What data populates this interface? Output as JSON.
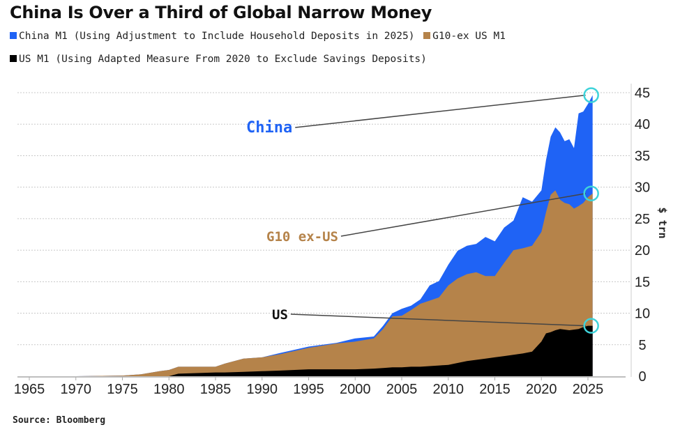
{
  "chart_data": {
    "type": "area",
    "stacked": true,
    "title": "China Is Over a Third of Global Narrow Money",
    "ylabel": "$ trn",
    "xlabel": "",
    "xlim": [
      1962,
      2029
    ],
    "ylim": [
      0,
      45
    ],
    "y_axis_position": "right",
    "yticks": [
      "0",
      "5",
      "10",
      "15",
      "20",
      "25",
      "30",
      "35",
      "40",
      "45"
    ],
    "xticks": [
      "1965",
      "1970",
      "1975",
      "1980",
      "1985",
      "1990",
      "1995",
      "2000",
      "2005",
      "2010",
      "2015",
      "2020",
      "2025"
    ],
    "grid": "horizontal dotted",
    "legend_position": "top",
    "source": "Source: Bloomberg",
    "x": [
      1965,
      1970,
      1975,
      1977,
      1979,
      1980,
      1981,
      1983,
      1985,
      1986,
      1988,
      1990,
      1992,
      1995,
      1998,
      2000,
      2002,
      2003,
      2004,
      2005,
      2006,
      2007,
      2008,
      2009,
      2010,
      2011,
      2012,
      2013,
      2014,
      2015,
      2016,
      2017,
      2018,
      2019,
      2020,
      2020.5,
      2021,
      2021.5,
      2022,
      2022.5,
      2023,
      2023.5,
      2024,
      2024.5,
      2025,
      2025.5
    ],
    "series": [
      {
        "name": "US M1 (Using Adapted Measure From 2020 to Exclude Savings Deposits)",
        "label": "US",
        "color": "#000000",
        "values": [
          0,
          0,
          0,
          0,
          0,
          0,
          0.4,
          0.5,
          0.6,
          0.6,
          0.7,
          0.8,
          0.9,
          1.1,
          1.1,
          1.1,
          1.2,
          1.3,
          1.4,
          1.4,
          1.5,
          1.5,
          1.6,
          1.7,
          1.8,
          2.1,
          2.4,
          2.6,
          2.8,
          3.0,
          3.2,
          3.4,
          3.6,
          3.9,
          5.5,
          6.8,
          7.0,
          7.3,
          7.5,
          7.4,
          7.3,
          7.4,
          7.5,
          7.8,
          8.0,
          8.0
        ]
      },
      {
        "name": "G10-ex US M1",
        "label": "G10 ex-US",
        "color": "#B5834A",
        "values": [
          0,
          0,
          0.1,
          0.3,
          0.8,
          1.0,
          1.1,
          1.0,
          0.9,
          1.4,
          2.1,
          2.2,
          2.6,
          3.4,
          4.1,
          4.4,
          4.8,
          6.2,
          8.1,
          8.2,
          9.0,
          10.0,
          10.4,
          10.8,
          12.6,
          13.4,
          13.8,
          13.9,
          13.1,
          12.9,
          14.8,
          16.6,
          16.7,
          16.8,
          17.4,
          19.2,
          21.8,
          22.2,
          20.5,
          20.1,
          20.0,
          19.2,
          19.5,
          19.7,
          20.4,
          21.0
        ]
      },
      {
        "name": "China M1 (Using Adjustment to Include Household Deposits in 2025)",
        "label": "China",
        "color": "#1F63F5",
        "values": [
          0,
          0,
          0,
          0,
          0,
          0,
          0,
          0,
          0,
          0,
          0,
          0,
          0.2,
          0.2,
          0.1,
          0.5,
          0.3,
          0.5,
          0.5,
          1.1,
          0.7,
          0.7,
          2.4,
          2.6,
          3.3,
          4.4,
          4.5,
          4.5,
          6.2,
          5.5,
          5.6,
          4.7,
          8.1,
          7.0,
          6.6,
          8.3,
          9.2,
          10.0,
          10.7,
          9.8,
          10.3,
          9.6,
          14.7,
          14.5,
          14.8,
          15.6
        ]
      }
    ],
    "highlight_color": "#3FD3DA"
  }
}
